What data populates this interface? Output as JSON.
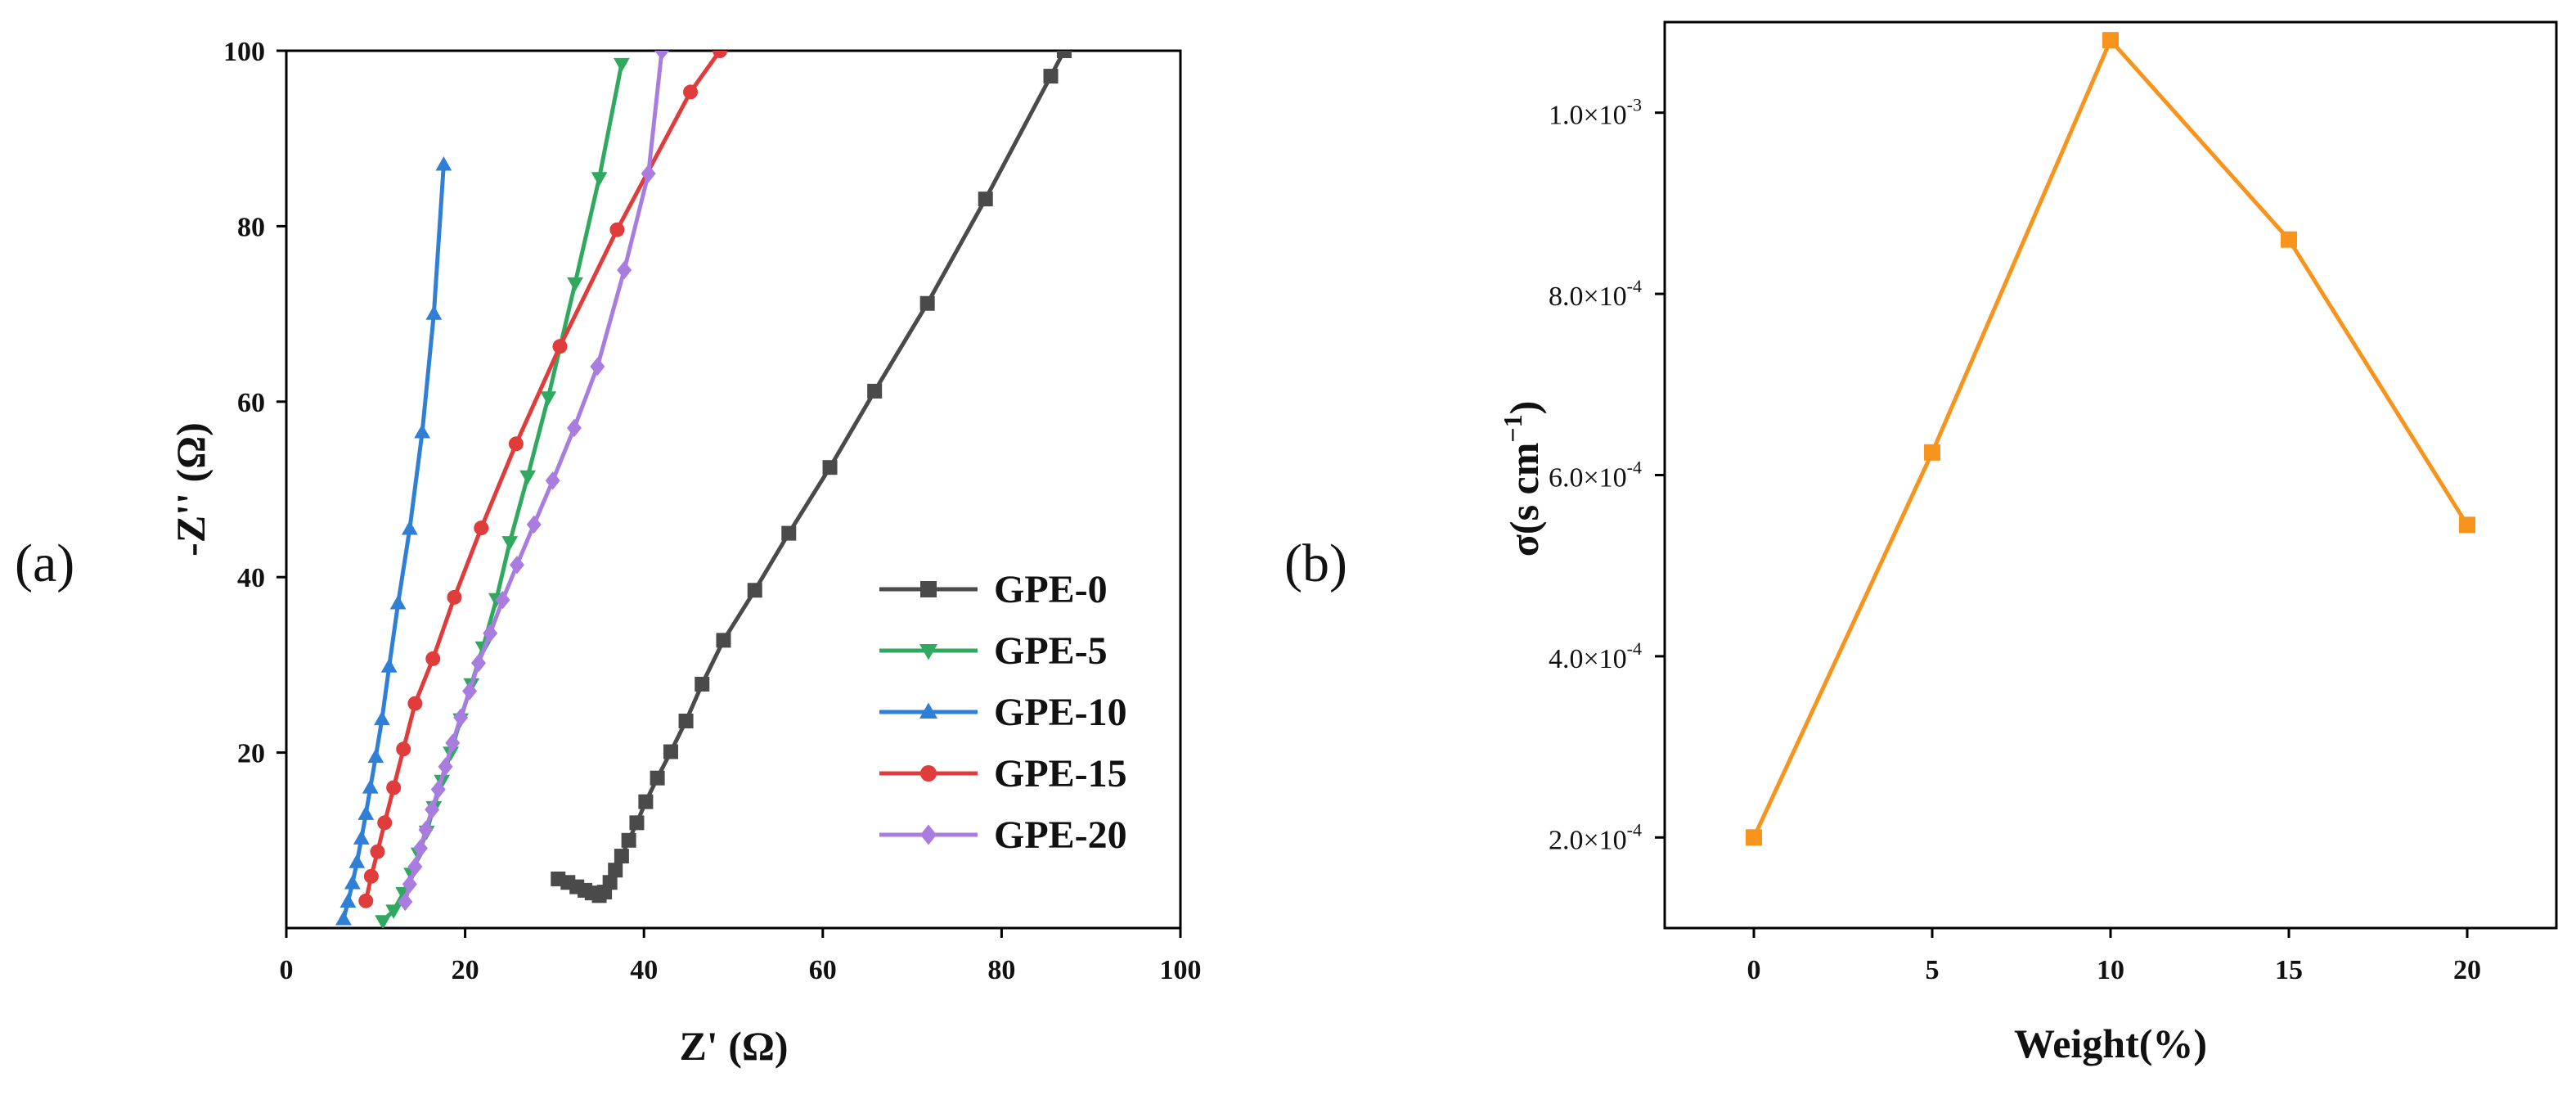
{
  "chart_data": [
    {
      "panel_label": "(a)",
      "type": "line",
      "xlabel": "Z' (Ω)",
      "ylabel": "-Z'' (Ω)",
      "xlim": [
        0,
        100
      ],
      "ylim": [
        0,
        100
      ],
      "x_ticks": [
        0,
        20,
        40,
        60,
        80,
        100
      ],
      "x_tick_labels": [
        "0",
        "20",
        "40",
        "60",
        "80",
        "100"
      ],
      "y_ticks": [
        20,
        40,
        60,
        80,
        100
      ],
      "y_tick_labels": [
        "20",
        "40",
        "60",
        "80",
        "100"
      ],
      "grid": false,
      "legend_position": "bottom-right",
      "series": [
        {
          "name": "GPE-0",
          "color": "#4a4a4a",
          "marker": "square",
          "x": [
            30.4,
            31.5,
            32.5,
            33.4,
            34.2,
            35.0,
            35.6,
            36.2,
            36.8,
            37.5,
            38.3,
            39.2,
            40.2,
            41.5,
            43.0,
            44.7,
            46.5,
            48.9,
            52.4,
            56.2,
            60.8,
            65.8,
            71.7,
            78.2,
            85.5,
            87.0
          ],
          "y": [
            5.6,
            5.2,
            4.7,
            4.3,
            4.0,
            3.7,
            4.1,
            5.2,
            6.6,
            8.2,
            10.0,
            12.0,
            14.4,
            17.1,
            20.1,
            23.6,
            27.8,
            32.8,
            38.5,
            45.0,
            52.5,
            61.2,
            71.2,
            83.1,
            97.1,
            100.0
          ]
        },
        {
          "name": "GPE-5",
          "color": "#2fa860",
          "marker": "triangle-down",
          "x": [
            10.8,
            12.0,
            13.1,
            14.0,
            14.8,
            15.7,
            16.5,
            17.4,
            18.4,
            19.5,
            20.7,
            22.0,
            23.5,
            25.0,
            27.0,
            29.3,
            32.3,
            35.0,
            37.5
          ],
          "y": [
            0.8,
            2.0,
            4.0,
            6.2,
            8.5,
            11.0,
            13.8,
            16.8,
            20.0,
            23.8,
            27.8,
            32.0,
            37.5,
            44.0,
            51.5,
            60.5,
            73.5,
            85.5,
            98.5
          ]
        },
        {
          "name": "GPE-10",
          "color": "#2f7fd6",
          "marker": "triangle-up",
          "x": [
            6.4,
            6.9,
            7.4,
            7.9,
            8.4,
            8.9,
            9.4,
            10.0,
            10.7,
            11.5,
            12.5,
            13.8,
            15.2,
            16.5,
            17.6
          ],
          "y": [
            1.0,
            3.0,
            5.1,
            7.5,
            10.2,
            13.0,
            16.0,
            19.5,
            23.8,
            29.8,
            37.0,
            45.5,
            56.5,
            70.0,
            87.0
          ]
        },
        {
          "name": "GPE-15",
          "color": "#e03c3c",
          "marker": "circle",
          "x": [
            8.9,
            9.5,
            10.2,
            11.0,
            12.0,
            13.1,
            14.4,
            16.4,
            18.8,
            21.8,
            25.7,
            30.6,
            37.0,
            45.2,
            48.5
          ],
          "y": [
            3.1,
            5.9,
            8.7,
            12.0,
            16.0,
            20.4,
            25.6,
            30.7,
            37.7,
            45.6,
            55.2,
            66.3,
            79.6,
            95.3,
            100.0
          ]
        },
        {
          "name": "GPE-20",
          "color": "#a97ce0",
          "marker": "diamond",
          "x": [
            13.3,
            13.8,
            14.4,
            15.0,
            15.6,
            16.3,
            17.0,
            17.8,
            18.6,
            19.5,
            20.5,
            21.5,
            22.8,
            24.2,
            25.8,
            27.7,
            29.8,
            32.2,
            34.8,
            37.8,
            40.5,
            42.0
          ],
          "y": [
            3.0,
            5.0,
            7.0,
            9.1,
            11.2,
            13.5,
            15.8,
            18.4,
            21.1,
            24.0,
            27.0,
            30.2,
            33.6,
            37.4,
            41.4,
            46.0,
            51.0,
            57.0,
            64.0,
            75.0,
            86.0,
            100.0
          ]
        }
      ]
    },
    {
      "panel_label": "(b)",
      "type": "line",
      "xlabel": "Weight(%)",
      "ylabel_prefix": "σ(s cm",
      "ylabel_exp": "−1",
      "ylabel_suffix": ")",
      "xlim": [
        -2.5,
        22.5
      ],
      "ylim": [
        0.0001,
        0.0011
      ],
      "x_ticks": [
        0,
        5,
        10,
        15,
        20
      ],
      "x_tick_labels": [
        "0",
        "5",
        "10",
        "15",
        "20"
      ],
      "y_ticks": [
        0.0002,
        0.0004,
        0.0006,
        0.0008,
        0.001
      ],
      "y_tick_mantissa": [
        "2.0×10",
        "4.0×10",
        "6.0×10",
        "8.0×10",
        "1.0×10"
      ],
      "y_tick_exponent": [
        "-4",
        "-4",
        "-4",
        "-4",
        "-3"
      ],
      "grid": false,
      "series": [
        {
          "name": "σ",
          "color": "#f7941d",
          "marker": "square",
          "x": [
            0,
            5,
            10,
            15,
            20
          ],
          "y": [
            0.0002,
            0.000625,
            0.00108,
            0.00086,
            0.000545
          ]
        }
      ]
    }
  ]
}
